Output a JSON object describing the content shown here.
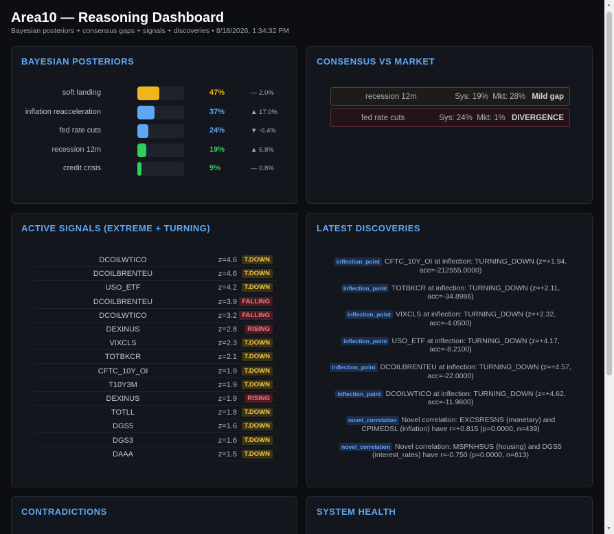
{
  "header": {
    "title": "Area10 — Reasoning Dashboard",
    "subtitle": "Bayesian posteriors + consensus gaps + signals + discoveries • 8/18/2026, 1:34:32 PM"
  },
  "posteriors": {
    "title": "BAYESIAN POSTERIORS",
    "rows": [
      {
        "label": "soft landing",
        "prob": 0.47,
        "value": "47%",
        "delta": "— 2.0%",
        "color": "#f0b51a"
      },
      {
        "label": "inflation reacceleration",
        "prob": 0.37,
        "value": "37%",
        "delta": "▲ 17.0%",
        "color": "#5fa7f2"
      },
      {
        "label": "fed rate cuts",
        "prob": 0.24,
        "value": "24%",
        "delta": "▼ -6.4%",
        "color": "#5fa7f2"
      },
      {
        "label": "recession 12m",
        "prob": 0.19,
        "value": "19%",
        "delta": "▲ 5.8%",
        "color": "#2fcf5f"
      },
      {
        "label": "credit crisis",
        "prob": 0.09,
        "value": "9%",
        "delta": "— 0.8%",
        "color": "#2fcf5f"
      }
    ]
  },
  "consensus": {
    "title": "CONSENSUS VS MARKET",
    "rows": [
      {
        "label": "recession 12m",
        "sys": "Sys: 19%",
        "mkt": "Mkt: 28%",
        "gap": "Mild gap"
      },
      {
        "label": "fed rate cuts",
        "sys": "Sys: 24%",
        "mkt": "Mkt: 1%",
        "gap": "DIVERGENCE"
      }
    ]
  },
  "signals": {
    "title": "ACTIVE SIGNALS (EXTREME + TURNING)",
    "rows": [
      {
        "name": "DCOILWTICO",
        "z": "z=4.6",
        "badge": "T.DOWN"
      },
      {
        "name": "DCOILBRENTEU",
        "z": "z=4.6",
        "badge": "T.DOWN"
      },
      {
        "name": "USO_ETF",
        "z": "z=4.2",
        "badge": "T.DOWN"
      },
      {
        "name": "DCOILBRENTEU",
        "z": "z=3.9",
        "badge": "FALLING"
      },
      {
        "name": "DCOILWTICO",
        "z": "z=3.2",
        "badge": "FALLING"
      },
      {
        "name": "DEXINUS",
        "z": "z=2.8",
        "badge": "RISING"
      },
      {
        "name": "VIXCLS",
        "z": "z=2.3",
        "badge": "T.DOWN"
      },
      {
        "name": "TOTBKCR",
        "z": "z=2.1",
        "badge": "T.DOWN"
      },
      {
        "name": "CFTC_10Y_OI",
        "z": "z=1.9",
        "badge": "T.DOWN"
      },
      {
        "name": "T10Y3M",
        "z": "z=1.9",
        "badge": "T.DOWN"
      },
      {
        "name": "DEXINUS",
        "z": "z=1.9",
        "badge": "RISING"
      },
      {
        "name": "TOTLL",
        "z": "z=1.8",
        "badge": "T.DOWN"
      },
      {
        "name": "DGS5",
        "z": "z=1.6",
        "badge": "T.DOWN"
      },
      {
        "name": "DGS3",
        "z": "z=1.6",
        "badge": "T.DOWN"
      },
      {
        "name": "DAAA",
        "z": "z=1.5",
        "badge": "T.DOWN"
      }
    ]
  },
  "discoveries": {
    "title": "LATEST DISCOVERIES",
    "rows": [
      {
        "tag": "inflection_point",
        "text": "CFTC_10Y_OI at inflection: TURNING_DOWN (z=+1.94, acc=-212555.0000)"
      },
      {
        "tag": "inflection_point",
        "text": "TOTBKCR at inflection: TURNING_DOWN (z=+2.11, acc=-34.8986)"
      },
      {
        "tag": "inflection_point",
        "text": "VIXCLS at inflection: TURNING_DOWN (z=+2.32, acc=-4.0500)"
      },
      {
        "tag": "inflection_point",
        "text": "USO_ETF at inflection: TURNING_DOWN (z=+4.17, acc=-8.2100)"
      },
      {
        "tag": "inflection_point",
        "text": "DCOILBRENTEU at inflection: TURNING_DOWN (z=+4.57, acc=-22.0000)"
      },
      {
        "tag": "inflection_point",
        "text": "DCOILWTICO at inflection: TURNING_DOWN (z=+4.62, acc=-11.9800)"
      },
      {
        "tag": "novel_correlation",
        "text": "Novel correlation: EXCSRESNS (monetary) and CPIMEDSL (inflation) have r=+0.815 (p=0.0000, n=439)"
      },
      {
        "tag": "novel_correlation",
        "text": "Novel correlation: MSPNHSUS (housing) and DGS5 (interest_rates) have r=-0.750 (p=0.0000, n=613)"
      }
    ]
  },
  "contradictions": {
    "title": "CONTRADICTIONS"
  },
  "health": {
    "title": "SYSTEM HEALTH"
  }
}
